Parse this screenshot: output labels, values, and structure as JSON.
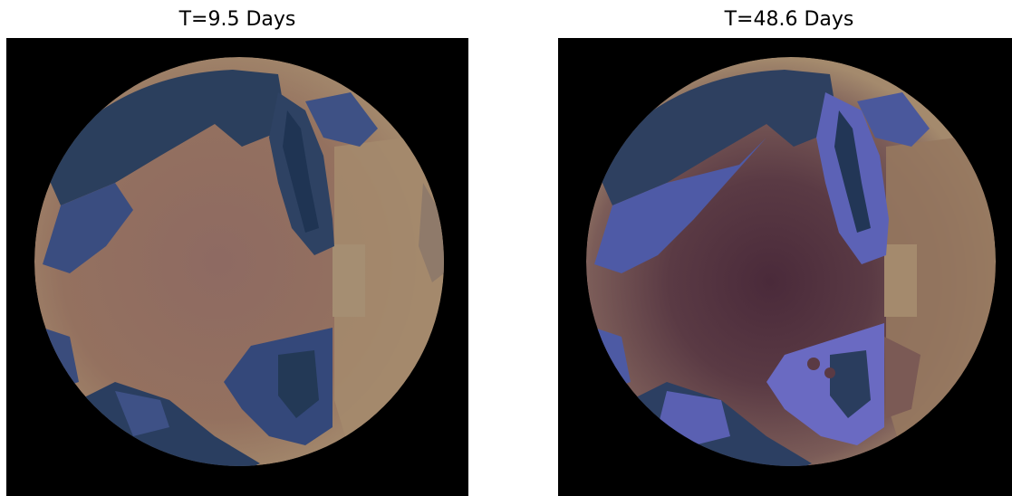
{
  "panels": [
    {
      "title": "T=9.5 Days"
    },
    {
      "title": "T=48.6 Days"
    }
  ],
  "colors": {
    "space": "#000000",
    "land_light": "#a48a6d",
    "land_dark": "#5e3e45",
    "water_deep": "#253b5c",
    "water_mid": "#42548e",
    "water_bright": "#6c6cc4"
  }
}
